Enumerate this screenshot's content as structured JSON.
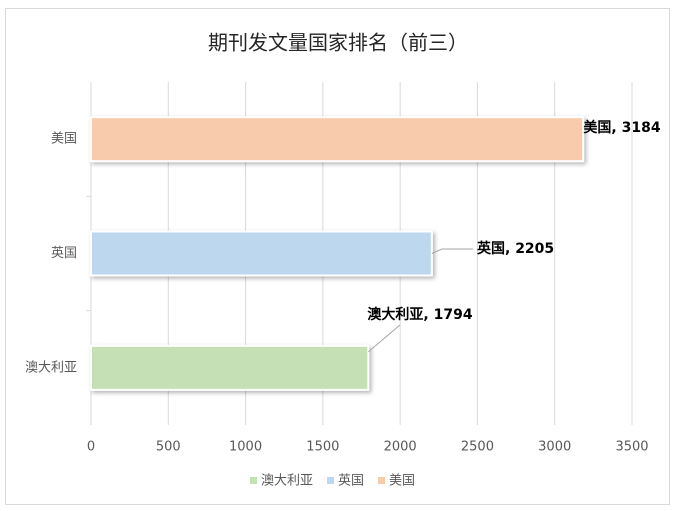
{
  "chart_data": {
    "type": "bar",
    "orientation": "horizontal",
    "title": "期刊发文量国家排名（前三）",
    "categories": [
      "澳大利亚",
      "英国",
      "美国"
    ],
    "values": [
      1794,
      2205,
      3184
    ],
    "value_labels": [
      "澳大利亚, 1794",
      "英国, 2205",
      "美国, 3184"
    ],
    "colors": [
      "#c5e0b4",
      "#bdd7ee",
      "#f8cbad"
    ],
    "xlim": [
      0,
      3500
    ],
    "xticks": [
      0,
      500,
      1000,
      1500,
      2000,
      2500,
      3000,
      3500
    ],
    "grid": true,
    "legend": "bottom"
  }
}
